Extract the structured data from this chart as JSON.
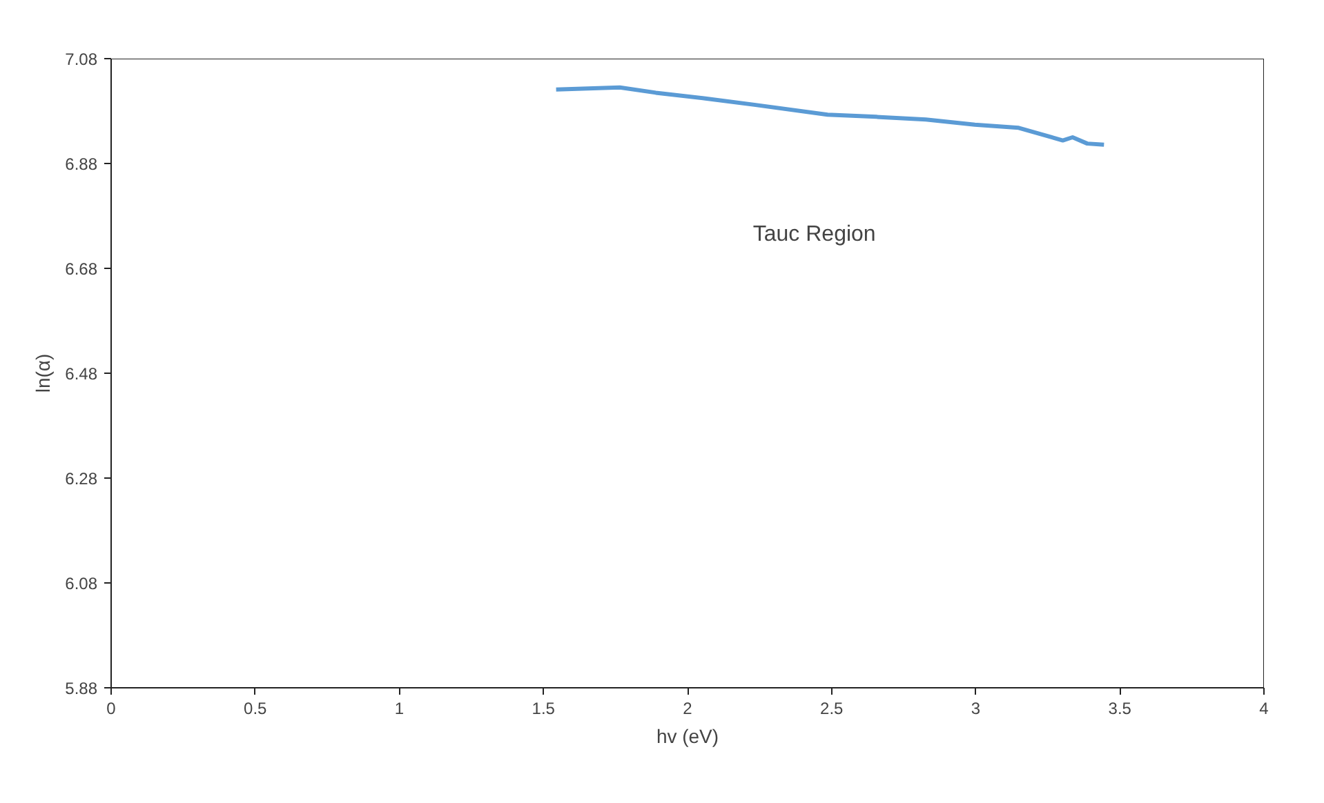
{
  "chart_data": {
    "type": "line",
    "xlabel": "hv (eV)",
    "ylabel": "ln(α)",
    "x": [
      1.544,
      1.765,
      1.89,
      2.062,
      2.232,
      2.486,
      2.655,
      2.827,
      2.997,
      3.149,
      3.302,
      3.336,
      3.387,
      3.445
    ],
    "series": [
      {
        "color": "#5b9bd5",
        "values": [
          7.021,
          7.025,
          7.015,
          7.004,
          6.992,
          6.973,
          6.969,
          6.964,
          6.954,
          6.948,
          6.924,
          6.93,
          6.918,
          6.916
        ]
      }
    ],
    "xlim": [
      0,
      4
    ],
    "xticks": [
      0,
      0.5,
      1,
      1.5,
      2,
      2.5,
      3,
      3.5,
      4
    ],
    "ylim": [
      5.88,
      7.08
    ],
    "yticks": [
      5.88,
      6.08,
      6.28,
      6.48,
      6.68,
      6.88,
      7.08
    ],
    "annotations": [
      "Tauc Region"
    ],
    "grid": false,
    "marker": "none",
    "line_style": "solid"
  }
}
